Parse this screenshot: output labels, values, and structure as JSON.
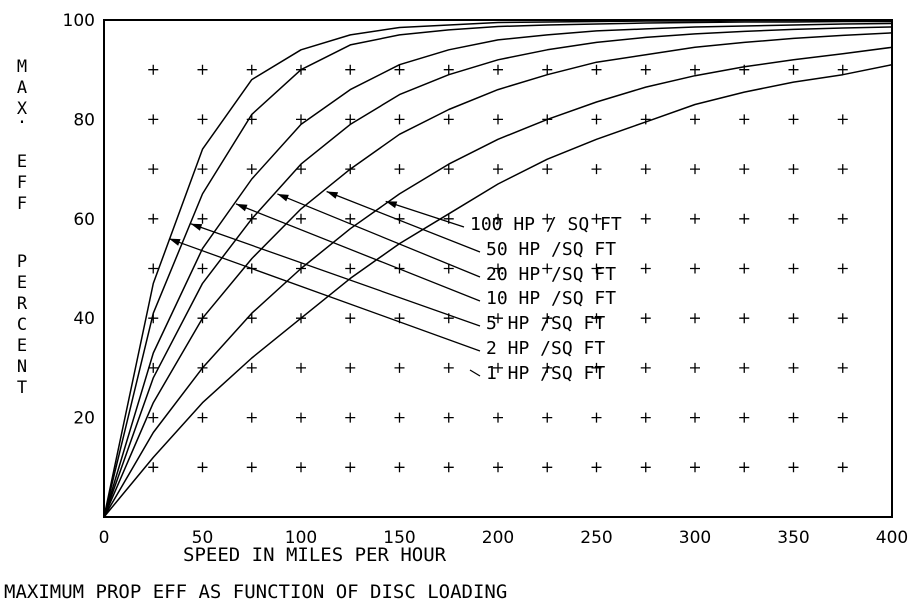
{
  "chart_data": {
    "type": "line",
    "title": "MAXIMUM PROP EFF AS FUNCTION OF DISC LOADING",
    "xlabel": "SPEED IN MILES PER HOUR",
    "ylabel_line1": "MAX. EFF",
    "ylabel_line2": "PERCENT",
    "xlim": [
      0,
      400
    ],
    "ylim": [
      0,
      100
    ],
    "x_ticks": [
      "0",
      "50",
      "100",
      "150",
      "200",
      "250",
      "300",
      "350",
      "400"
    ],
    "y_ticks": [
      "20",
      "40",
      "60",
      "80",
      "100"
    ],
    "grid": "plus-markers",
    "x": [
      0,
      25,
      50,
      75,
      100,
      125,
      150,
      175,
      200,
      225,
      250,
      275,
      300,
      325,
      350,
      375,
      400
    ],
    "series": [
      {
        "name": "100 HP / SQ FT",
        "values": [
          0,
          47,
          74,
          88,
          94,
          97,
          98.5,
          99,
          99.5,
          99.6,
          99.7,
          99.8,
          99.8,
          99.9,
          99.9,
          99.9,
          100
        ]
      },
      {
        "name": "50 HP /SQ FT",
        "values": [
          0,
          41,
          65,
          81,
          90,
          95,
          97,
          98,
          98.7,
          99,
          99.2,
          99.4,
          99.5,
          99.6,
          99.6,
          99.7,
          99.7
        ]
      },
      {
        "name": "20 HP /SQ FT",
        "values": [
          0,
          33,
          54,
          68,
          79,
          86,
          91,
          94,
          96,
          97,
          97.8,
          98.2,
          98.6,
          98.8,
          99,
          99.2,
          99.3
        ]
      },
      {
        "name": "10 HP /SQ FT",
        "values": [
          0,
          28,
          47,
          60,
          71,
          79,
          85,
          89,
          92,
          94,
          95.5,
          96.5,
          97.2,
          97.7,
          98.1,
          98.4,
          98.6
        ]
      },
      {
        "name": "5 HP /SQ FT",
        "values": [
          0,
          23,
          40,
          52,
          62,
          70,
          77,
          82,
          86,
          89,
          91.5,
          93,
          94.5,
          95.5,
          96.3,
          96.9,
          97.4
        ]
      },
      {
        "name": "2 HP /SQ FT",
        "values": [
          0,
          17,
          30,
          41,
          50,
          58,
          65,
          71,
          76,
          80,
          83.5,
          86.5,
          88.8,
          90.6,
          92,
          93.2,
          94.5
        ]
      },
      {
        "name": "1 HP /SQ FT",
        "values": [
          0,
          12,
          23,
          32,
          40,
          48,
          55,
          61,
          67,
          72,
          76,
          79.5,
          83,
          85.5,
          87.5,
          89,
          91
        ]
      }
    ],
    "annotations": [
      {
        "text": "100 HP / SQ FT",
        "arrow_to": [
          143,
          63.5
        ]
      },
      {
        "text": "50 HP /SQ FT",
        "arrow_to": [
          113,
          65.5
        ]
      },
      {
        "text": "20 HP /SQ FT",
        "arrow_to": [
          88,
          65
        ]
      },
      {
        "text": "10 HP /SQ FT",
        "arrow_to": [
          67,
          63
        ]
      },
      {
        "text": "5 HP /SQ FT",
        "arrow_to": [
          44,
          59
        ]
      },
      {
        "text": "2 HP /SQ FT",
        "arrow_to": [
          33,
          56
        ]
      },
      {
        "text": "1 HP /SQ FT",
        "arrow_to": null
      }
    ]
  }
}
